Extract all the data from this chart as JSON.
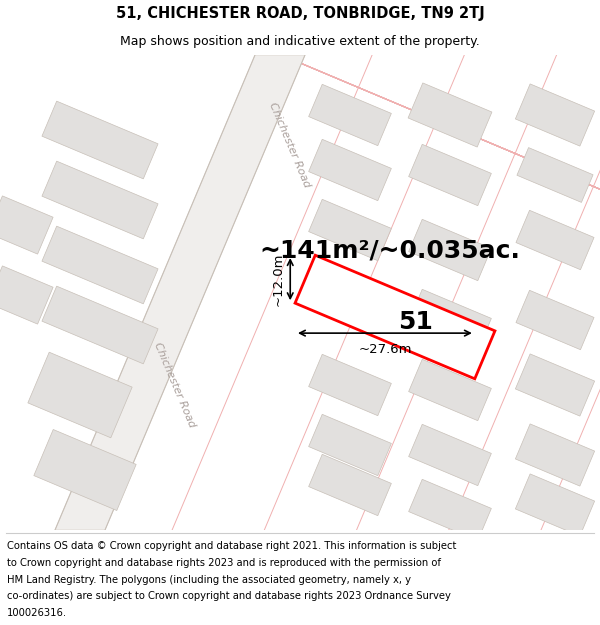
{
  "title_line1": "51, CHICHESTER ROAD, TONBRIDGE, TN9 2TJ",
  "title_line2": "Map shows position and indicative extent of the property.",
  "area_label": "~141m²/~0.035ac.",
  "property_number": "51",
  "width_label": "~27.6m",
  "height_label": "~12.0m",
  "footer_lines": [
    "Contains OS data © Crown copyright and database right 2021. This information is subject",
    "to Crown copyright and database rights 2023 and is reproduced with the permission of",
    "HM Land Registry. The polygons (including the associated geometry, namely x, y",
    "co-ordinates) are subject to Crown copyright and database rights 2023 Ordnance Survey",
    "100026316."
  ],
  "title_fontsize": 10.5,
  "subtitle_fontsize": 9,
  "area_fontsize": 18,
  "number_fontsize": 18,
  "measure_fontsize": 9.5,
  "footer_fontsize": 7.2,
  "road_label_fontsize": 8
}
